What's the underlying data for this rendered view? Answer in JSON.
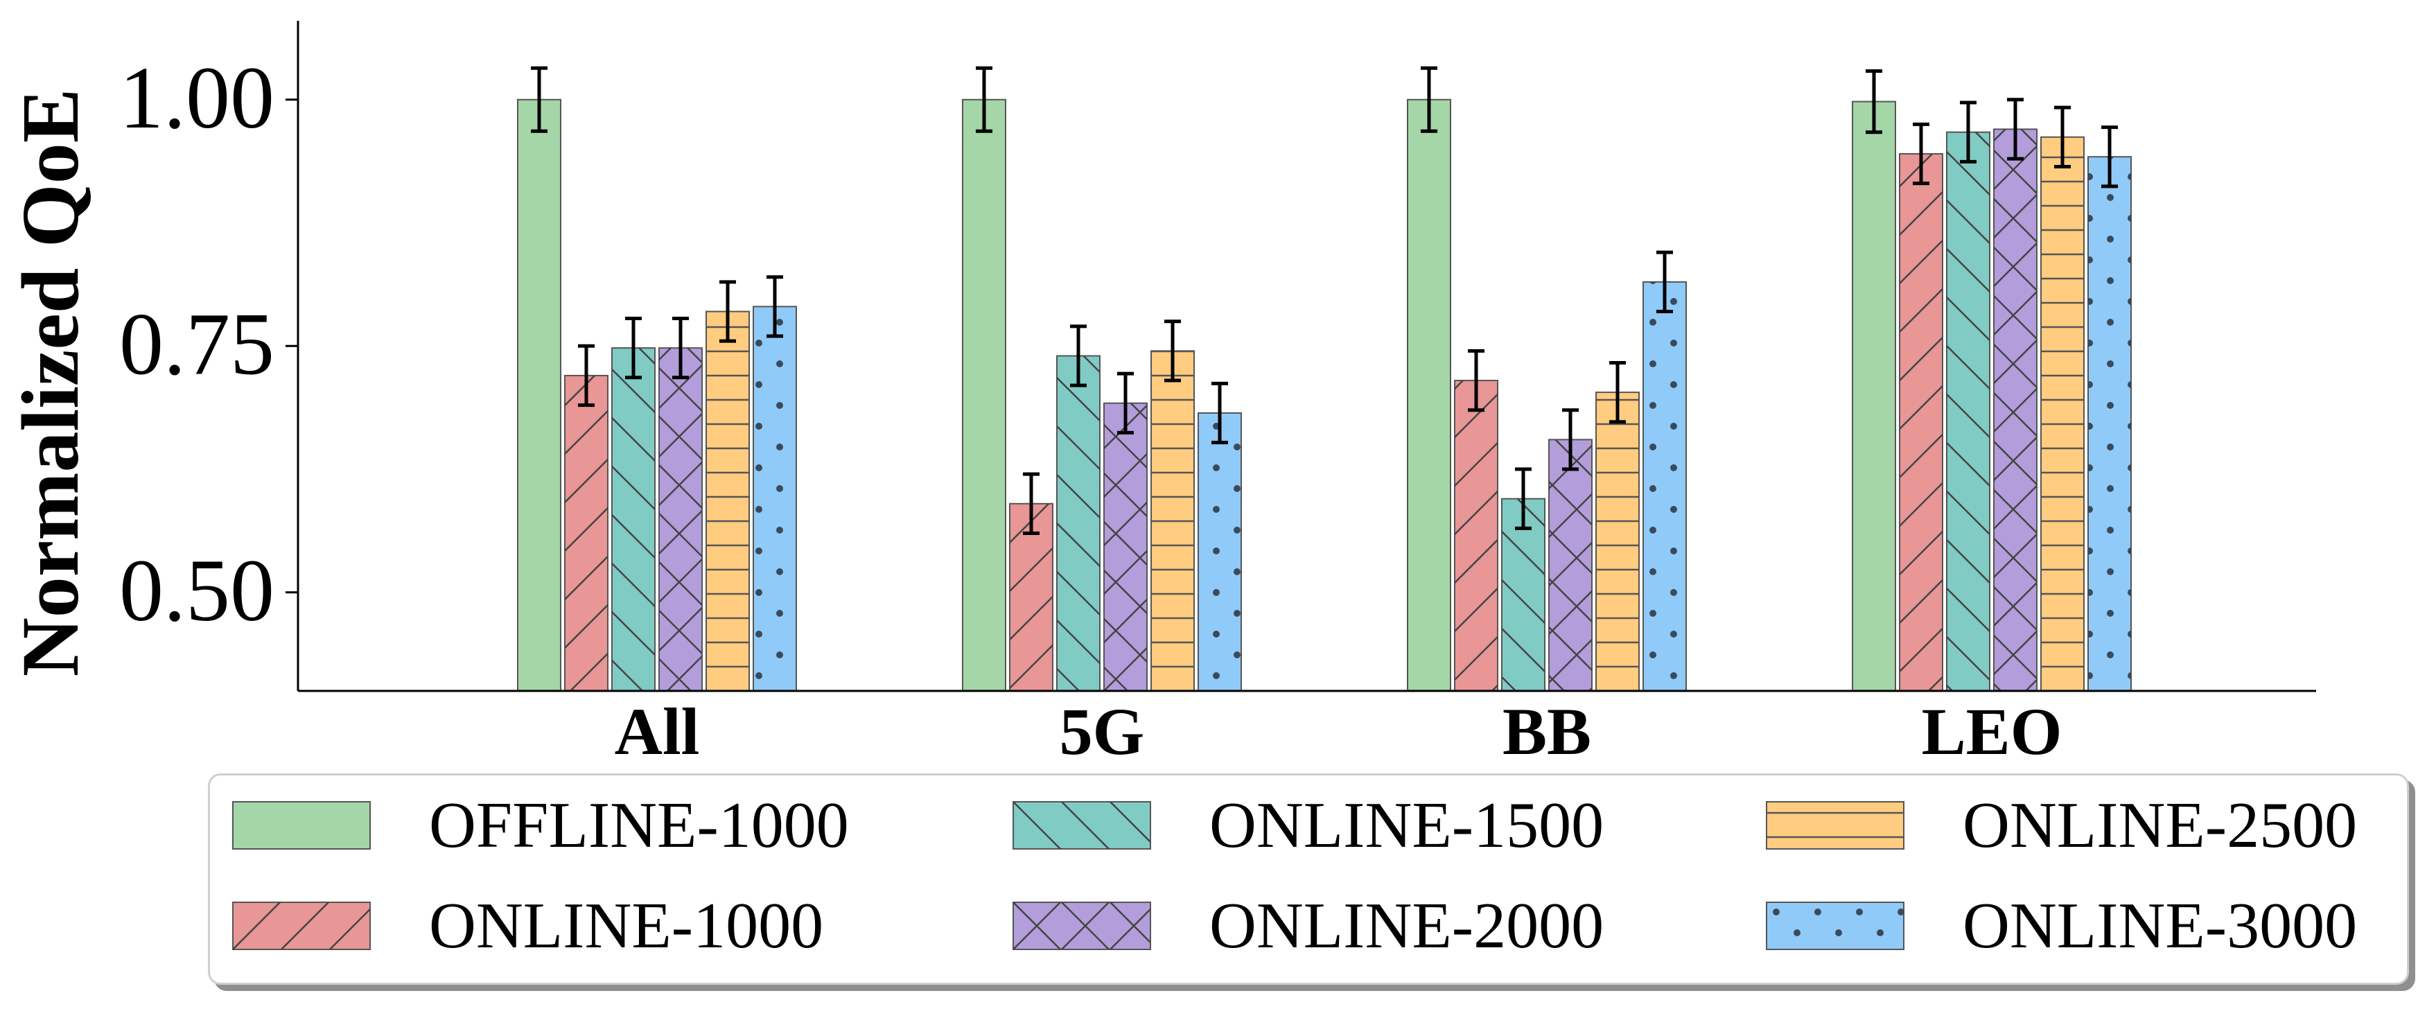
{
  "chart_data": {
    "type": "bar",
    "ylabel": "Normalized QoE",
    "xlabel": "",
    "ylim": [
      0.4,
      1.08
    ],
    "yticks": [
      "0.50",
      "0.75",
      "1.00"
    ],
    "categories": [
      "All",
      "5G",
      "BB",
      "LEO"
    ],
    "legend_position": "bottom",
    "series": [
      {
        "name": "OFFLINE-1000",
        "color": "#a5d6a7",
        "hatch": "none",
        "values": [
          1.0,
          1.0,
          1.0,
          0.998
        ],
        "errors": [
          0.032,
          0.032,
          0.032,
          0.031
        ]
      },
      {
        "name": "ONLINE-1000",
        "color": "#e89696",
        "hatch": "slash",
        "values": [
          0.72,
          0.59,
          0.715,
          0.945
        ],
        "errors": [
          0.03,
          0.03,
          0.03,
          0.03
        ]
      },
      {
        "name": "ONLINE-1500",
        "color": "#80cbc4",
        "hatch": "backslash",
        "values": [
          0.748,
          0.74,
          0.595,
          0.967
        ],
        "errors": [
          0.03,
          0.03,
          0.03,
          0.03
        ]
      },
      {
        "name": "ONLINE-2000",
        "color": "#b39ddb",
        "hatch": "cross",
        "values": [
          0.748,
          0.692,
          0.655,
          0.97
        ],
        "errors": [
          0.03,
          0.03,
          0.03,
          0.03
        ]
      },
      {
        "name": "ONLINE-2500",
        "color": "#ffcc80",
        "hatch": "horizontal",
        "values": [
          0.785,
          0.745,
          0.703,
          0.962
        ],
        "errors": [
          0.03,
          0.03,
          0.03,
          0.03
        ]
      },
      {
        "name": "ONLINE-3000",
        "color": "#90caf9",
        "hatch": "dots",
        "values": [
          0.79,
          0.682,
          0.815,
          0.942
        ],
        "errors": [
          0.03,
          0.03,
          0.03,
          0.03
        ]
      }
    ]
  }
}
